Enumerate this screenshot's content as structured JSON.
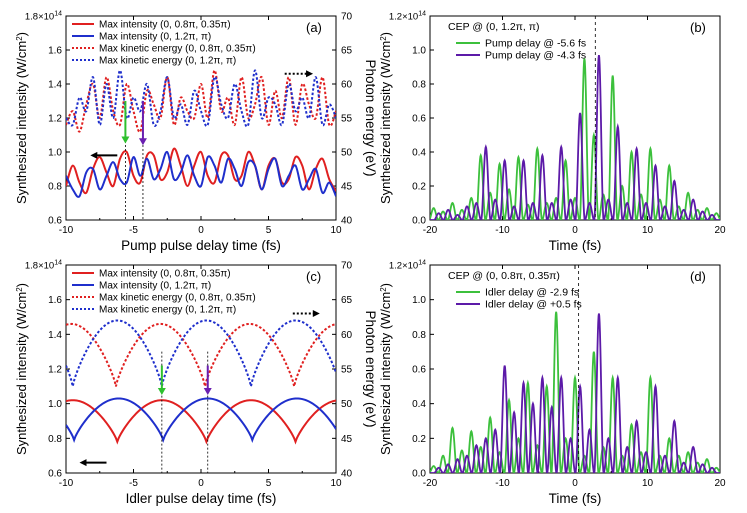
{
  "figure": "four-panel synthesized intensity figure",
  "chart_data": [
    {
      "panel": "(a)",
      "type": "line",
      "xlabel": "Pump pulse delay time (fs)",
      "ylabel": "Synthesized intensity (W/cm²)",
      "y2label": "Photon energy (eV)",
      "xlim": [
        -10,
        10
      ],
      "xticks": [
        -10,
        -5,
        0,
        5,
        10
      ],
      "ylim": [
        0.6,
        1.8
      ],
      "yticks": [
        0.6,
        0.8,
        1.0,
        1.2,
        1.4,
        1.6
      ],
      "ytick_labels": [
        "0.6",
        "0.8",
        "1.0",
        "1.2",
        "1.4",
        "1.6"
      ],
      "y_exp_mantissa": "1.8×10",
      "y_exp_power": "14",
      "y2lim": [
        40,
        70
      ],
      "y2ticks": [
        40,
        45,
        50,
        55,
        60,
        65,
        70
      ],
      "legend": [
        {
          "label": "Max intensity (0, 0.8π, 0.35π)",
          "color": "#e02020",
          "style": "solid"
        },
        {
          "label": "Max intensity (0, 1.2π, π)",
          "color": "#1f2fcc",
          "style": "solid"
        },
        {
          "label": "Max kinetic energy (0, 0.8π, 0.35π)",
          "color": "#e02020",
          "style": "dotted"
        },
        {
          "label": "Max kinetic energy (0, 1.2π, π)",
          "color": "#1f2fcc",
          "style": "dotted"
        }
      ],
      "series": [
        {
          "name": "Max intensity (0, 0.8π, 0.35π)",
          "color": "#e02020",
          "style": "solid",
          "axis": "left",
          "x": [
            -10,
            -9.5,
            -9,
            -8.5,
            -8,
            -7.5,
            -7,
            -6.5,
            -6,
            -5.5,
            -5,
            -4.5,
            -4,
            -3.5,
            -3,
            -2.5,
            -2,
            -1.5,
            -1,
            -0.5,
            0,
            0.5,
            1,
            1.5,
            2,
            2.5,
            3,
            3.5,
            4,
            4.5,
            5,
            5.5,
            6,
            6.5,
            7,
            7.5,
            8,
            8.5,
            9,
            9.5,
            10
          ],
          "values": [
            0.8,
            0.92,
            0.82,
            0.76,
            0.9,
            0.97,
            0.88,
            0.8,
            0.96,
            1.0,
            0.86,
            0.82,
            0.98,
            0.98,
            0.84,
            0.88,
            1.02,
            0.92,
            0.8,
            0.92,
            1.0,
            0.86,
            0.82,
            0.98,
            0.98,
            0.84,
            0.86,
            1.0,
            0.92,
            0.78,
            0.92,
            0.96,
            0.82,
            0.84,
            0.97,
            0.92,
            0.78,
            0.9,
            0.96,
            0.84,
            0.77
          ]
        },
        {
          "name": "Max intensity (0, 1.2π, π)",
          "color": "#1f2fcc",
          "style": "solid",
          "axis": "left",
          "x": [
            -10,
            -9.5,
            -9,
            -8.5,
            -8,
            -7.5,
            -7,
            -6.5,
            -6,
            -5.5,
            -5,
            -4.5,
            -4,
            -3.5,
            -3,
            -2.5,
            -2,
            -1.5,
            -1,
            -0.5,
            0,
            0.5,
            1,
            1.5,
            2,
            2.5,
            3,
            3.5,
            4,
            4.5,
            5,
            5.5,
            6,
            6.5,
            7,
            7.5,
            8,
            8.5,
            9,
            9.5,
            10
          ],
          "values": [
            0.86,
            0.78,
            0.74,
            0.88,
            0.9,
            0.78,
            0.86,
            0.94,
            0.84,
            0.82,
            0.97,
            0.86,
            0.96,
            0.84,
            0.9,
            1.0,
            0.84,
            0.88,
            0.98,
            0.86,
            0.8,
            0.97,
            0.92,
            0.82,
            0.96,
            0.9,
            0.8,
            0.94,
            0.92,
            0.78,
            0.9,
            0.96,
            0.8,
            0.86,
            0.92,
            0.78,
            0.84,
            0.9,
            0.76,
            0.82,
            0.74
          ]
        },
        {
          "name": "Max kinetic energy (0, 0.8π, 0.35π)",
          "color": "#e02020",
          "style": "dotted",
          "axis": "right",
          "x": [
            -10,
            -9.5,
            -9,
            -8.5,
            -8,
            -7.5,
            -7,
            -6.5,
            -6,
            -5.5,
            -5,
            -4.5,
            -4,
            -3.5,
            -3,
            -2.5,
            -2,
            -1.5,
            -1,
            -0.5,
            0,
            0.5,
            1,
            1.5,
            2,
            2.5,
            3,
            3.5,
            4,
            4.5,
            5,
            5.5,
            6,
            6.5,
            7,
            7.5,
            8,
            8.5,
            9,
            9.5,
            10
          ],
          "values": [
            54,
            56,
            53,
            57,
            60,
            55,
            61,
            56,
            54,
            60,
            56,
            53,
            59,
            57,
            55,
            61,
            54,
            58,
            56,
            55,
            60,
            55,
            62,
            56,
            58,
            54,
            61,
            55,
            57,
            61,
            54,
            59,
            55,
            61,
            54,
            60,
            57,
            55,
            61,
            54,
            56
          ]
        },
        {
          "name": "Max kinetic energy (0, 1.2π, π)",
          "color": "#1f2fcc",
          "style": "dotted",
          "axis": "right",
          "x": [
            -10,
            -9.5,
            -9,
            -8.5,
            -8,
            -7.5,
            -7,
            -6.5,
            -6,
            -5.5,
            -5,
            -4.5,
            -4,
            -3.5,
            -3,
            -2.5,
            -2,
            -1.5,
            -1,
            -0.5,
            0,
            0.5,
            1,
            1.5,
            2,
            2.5,
            3,
            3.5,
            4,
            4.5,
            5,
            5.5,
            6,
            6.5,
            7,
            7.5,
            8,
            8.5,
            9,
            9.5,
            10
          ],
          "values": [
            55,
            54,
            58,
            56,
            61,
            54,
            60,
            55,
            62,
            55,
            58,
            56,
            60,
            54,
            56,
            61,
            55,
            57,
            54,
            59,
            56,
            54,
            61,
            57,
            55,
            60,
            56,
            54,
            62,
            55,
            58,
            57,
            54,
            60,
            56,
            58,
            55,
            61,
            54,
            57,
            55
          ]
        }
      ],
      "arrows": [
        {
          "x": -5.6,
          "color": "#2ec02e",
          "from": 1.3,
          "to": 1.05
        },
        {
          "x": -4.3,
          "color": "#6a1fb0",
          "from": 1.3,
          "to": 1.04
        }
      ],
      "vlines": [
        -5.6,
        -4.3
      ],
      "axis_arrows": [
        {
          "dir": "left",
          "style": "solid",
          "x_from": -6.2,
          "x_to": -8.2,
          "y": 0.98
        },
        {
          "dir": "right",
          "style": "dotted",
          "x_from": 6.2,
          "x_to": 8.3,
          "y": 1.46
        }
      ]
    },
    {
      "panel": "(b)",
      "type": "line",
      "xlabel": "Time (fs)",
      "ylabel": "Synthesized intensity (W/cm²)",
      "xlim": [
        -20,
        20
      ],
      "xticks": [
        -20,
        -10,
        0,
        10,
        20
      ],
      "ylim": [
        0,
        1.2
      ],
      "yticks": [
        0.0,
        0.2,
        0.4,
        0.6,
        0.8,
        1.0
      ],
      "ytick_labels": [
        "0.0",
        "0.2",
        "0.4",
        "0.6",
        "0.8",
        "1.0"
      ],
      "y_exp_mantissa": "1.2×10",
      "y_exp_power": "14",
      "annotation": "CEP @ (0, 1.2π, π)",
      "legend": [
        {
          "label": "Pump delay @ -5.6 fs",
          "color": "#3cc03c",
          "style": "solid"
        },
        {
          "label": "Pump delay @ -4.3 fs",
          "color": "#5c1aa8",
          "style": "solid"
        }
      ],
      "series": [
        {
          "name": "Pump delay @ -5.6 fs",
          "color": "#3cc03c",
          "peaks_x": [
            -19.5,
            -18.2,
            -16.9,
            -15.6,
            -14.3,
            -13.0,
            -11.7,
            -10.4,
            -9.1,
            -7.8,
            -6.5,
            -5.2,
            -3.9,
            -2.6,
            -1.3,
            0.0,
            1.3,
            2.6,
            3.9,
            5.2,
            6.5,
            7.8,
            9.1,
            10.4,
            11.7,
            13.0,
            14.3,
            15.6,
            16.9,
            18.2,
            19.5
          ],
          "peaks_y": [
            0.07,
            0.05,
            0.1,
            0.06,
            0.13,
            0.38,
            0.16,
            0.33,
            0.18,
            0.37,
            0.09,
            0.42,
            0.1,
            0.13,
            0.35,
            0.13,
            0.95,
            0.5,
            0.15,
            0.85,
            0.2,
            0.4,
            0.15,
            0.42,
            0.12,
            0.32,
            0.08,
            0.16,
            0.06,
            0.07,
            0.04
          ]
        },
        {
          "name": "Pump delay @ -4.3 fs",
          "color": "#5c1aa8",
          "peaks_x": [
            -18.8,
            -17.5,
            -16.2,
            -14.9,
            -13.6,
            -12.3,
            -11.0,
            -9.7,
            -8.4,
            -7.1,
            -5.8,
            -4.5,
            -3.2,
            -1.9,
            -0.6,
            0.7,
            2.0,
            3.3,
            4.6,
            5.9,
            7.2,
            8.5,
            9.8,
            11.1,
            12.4,
            13.7,
            15.0,
            16.3,
            17.6,
            18.9
          ],
          "peaks_y": [
            0.04,
            0.06,
            0.03,
            0.08,
            0.1,
            0.43,
            0.12,
            0.35,
            0.08,
            0.35,
            0.1,
            0.38,
            0.1,
            0.43,
            0.12,
            0.63,
            0.1,
            0.97,
            0.12,
            0.55,
            0.1,
            0.42,
            0.1,
            0.32,
            0.08,
            0.23,
            0.06,
            0.12,
            0.05,
            0.03
          ]
        }
      ],
      "vline_x": 2.8
    },
    {
      "panel": "(c)",
      "type": "line",
      "xlabel": "Idler pulse delay time (fs)",
      "ylabel": "Synthesized intensity (W/cm²)",
      "y2label": "Photon energy (eV)",
      "xlim": [
        -10,
        10
      ],
      "xticks": [
        -10,
        -5,
        0,
        5,
        10
      ],
      "ylim": [
        0.6,
        1.8
      ],
      "yticks": [
        0.6,
        0.8,
        1.0,
        1.2,
        1.4,
        1.6
      ],
      "ytick_labels": [
        "0.6",
        "0.8",
        "1.0",
        "1.2",
        "1.4",
        "1.6"
      ],
      "y_exp_mantissa": "1.8×10",
      "y_exp_power": "14",
      "y2lim": [
        40,
        70
      ],
      "y2ticks": [
        40,
        45,
        50,
        55,
        60,
        65,
        70
      ],
      "legend": [
        {
          "label": "Max intensity (0, 0.8π, 0.35π)",
          "color": "#e02020",
          "style": "solid"
        },
        {
          "label": "Max intensity (0, 1.2π, π)",
          "color": "#1f2fcc",
          "style": "solid"
        },
        {
          "label": "Max kinetic energy (0, 0.8π, 0.35π)",
          "color": "#e02020",
          "style": "dotted"
        },
        {
          "label": "Max kinetic energy (0, 1.2π, π)",
          "color": "#1f2fcc",
          "style": "dotted"
        }
      ],
      "series": [
        {
          "name": "Max intensity (0, 0.8π, 0.35π)",
          "color": "#e02020",
          "style": "solid",
          "axis": "left",
          "period": 6.6,
          "peak_at": -2.9,
          "min": 0.78,
          "max": 1.02
        },
        {
          "name": "Max intensity (0, 1.2π, π)",
          "color": "#1f2fcc",
          "style": "solid",
          "axis": "left",
          "period": 6.6,
          "peak_at": 0.5,
          "min": 0.79,
          "max": 1.03
        },
        {
          "name": "Max kinetic energy (0, 0.8π, 0.35π)",
          "color": "#e02020",
          "style": "dotted",
          "axis": "right",
          "period": 6.6,
          "peak_at": -3.0,
          "min": 52.5,
          "max": 61.5
        },
        {
          "name": "Max kinetic energy (0, 1.2π, π)",
          "color": "#1f2fcc",
          "style": "dotted",
          "axis": "right",
          "period": 6.6,
          "peak_at": 0.4,
          "min": 52.5,
          "max": 62
        }
      ],
      "arrows": [
        {
          "x": -2.9,
          "color": "#2ec02e",
          "from": 1.22,
          "to": 1.05
        },
        {
          "x": 0.5,
          "color": "#6a1fb0",
          "from": 1.22,
          "to": 1.05
        }
      ],
      "vlines": [
        -2.9,
        0.5
      ],
      "axis_arrows": [
        {
          "dir": "left",
          "style": "solid",
          "x_from": -7.0,
          "x_to": -9.0,
          "y": 0.66
        },
        {
          "dir": "right",
          "style": "dotted",
          "x_from": 6.8,
          "x_to": 8.8,
          "y": 1.52
        }
      ]
    },
    {
      "panel": "(d)",
      "type": "line",
      "xlabel": "Time (fs)",
      "ylabel": "Synthesized intensity (W/cm²)",
      "xlim": [
        -20,
        20
      ],
      "xticks": [
        -20,
        -10,
        0,
        10,
        20
      ],
      "ylim": [
        0,
        1.2
      ],
      "yticks": [
        0.0,
        0.2,
        0.4,
        0.6,
        0.8,
        1.0
      ],
      "ytick_labels": [
        "0.0",
        "0.2",
        "0.4",
        "0.6",
        "0.8",
        "1.0"
      ],
      "y_exp_mantissa": "1.2×10",
      "y_exp_power": "14",
      "annotation": "CEP @ (0, 0.8π, 0.35π)",
      "legend": [
        {
          "label": "Idler delay @ -2.9 fs",
          "color": "#3cc03c",
          "style": "solid"
        },
        {
          "label": "Idler delay @ +0.5 fs",
          "color": "#5c1aa8",
          "style": "solid"
        }
      ],
      "series": [
        {
          "name": "Idler delay @ -2.9 fs",
          "color": "#3cc03c",
          "peaks_x": [
            -19.5,
            -18.2,
            -16.9,
            -15.6,
            -14.3,
            -13.0,
            -11.7,
            -10.4,
            -9.1,
            -7.8,
            -6.5,
            -5.2,
            -3.9,
            -2.6,
            -1.3,
            0.0,
            1.3,
            2.6,
            3.9,
            5.2,
            6.5,
            7.8,
            9.1,
            10.4,
            11.7,
            13.0,
            14.3,
            15.6,
            16.9,
            18.2,
            19.5
          ],
          "peaks_y": [
            0.04,
            0.1,
            0.26,
            0.13,
            0.24,
            0.15,
            0.32,
            0.12,
            0.42,
            0.2,
            0.52,
            0.16,
            0.5,
            0.93,
            0.2,
            0.55,
            0.1,
            0.7,
            0.15,
            0.55,
            0.1,
            0.28,
            0.12,
            0.55,
            0.1,
            0.2,
            0.1,
            0.12,
            0.06,
            0.08,
            0.03
          ]
        },
        {
          "name": "Idler delay @ +0.5 fs",
          "color": "#5c1aa8",
          "peaks_x": [
            -18.8,
            -17.5,
            -16.2,
            -14.9,
            -13.6,
            -12.3,
            -11.0,
            -9.7,
            -8.4,
            -7.1,
            -5.8,
            -4.5,
            -3.2,
            -1.9,
            -0.6,
            0.7,
            2.0,
            3.3,
            4.6,
            5.9,
            7.2,
            8.5,
            9.8,
            11.1,
            12.4,
            13.7,
            15.0,
            16.3,
            17.6,
            18.9
          ],
          "peaks_y": [
            0.03,
            0.05,
            0.08,
            0.1,
            0.16,
            0.2,
            0.25,
            0.62,
            0.35,
            0.52,
            0.4,
            0.55,
            0.38,
            0.55,
            0.2,
            0.5,
            0.25,
            0.92,
            0.2,
            0.55,
            0.15,
            0.3,
            0.12,
            0.5,
            0.1,
            0.3,
            0.06,
            0.15,
            0.05,
            0.03
          ]
        }
      ],
      "vline_x": 0.5
    }
  ]
}
